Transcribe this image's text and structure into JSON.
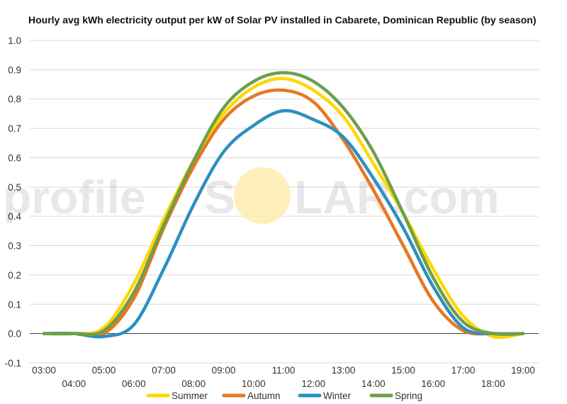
{
  "chart_data": {
    "type": "line",
    "title": "Hourly avg kWh electricity output per kW of Solar PV installed in Cabarete, Dominican Republic (by season)",
    "xlabel": "",
    "ylabel": "",
    "ylim": [
      -0.1,
      1.0
    ],
    "y_ticks": [
      "-0.1",
      "0.0",
      "0.1",
      "0.2",
      "0.3",
      "0.4",
      "0.5",
      "0.6",
      "0.7",
      "0.8",
      "0.9",
      "1.0"
    ],
    "x_ticks": [
      "03:00",
      "04:00",
      "05:00",
      "06:00",
      "07:00",
      "08:00",
      "09:00",
      "10:00",
      "11:00",
      "12:00",
      "13:00",
      "14:00",
      "15:00",
      "16:00",
      "17:00",
      "18:00",
      "19:00"
    ],
    "x": [
      3,
      4,
      5,
      6,
      7,
      8,
      9,
      10,
      11,
      12,
      13,
      14,
      15,
      16,
      17,
      18,
      19
    ],
    "grid": true,
    "legend_position": "bottom",
    "series": [
      {
        "name": "Summer",
        "color": "#FFD700",
        "values": [
          0.0,
          0.0,
          0.02,
          0.17,
          0.39,
          0.59,
          0.75,
          0.84,
          0.87,
          0.83,
          0.74,
          0.58,
          0.41,
          0.22,
          0.06,
          -0.01,
          0.0
        ]
      },
      {
        "name": "Autumn",
        "color": "#E87722",
        "values": [
          0.0,
          0.0,
          0.0,
          0.12,
          0.36,
          0.57,
          0.73,
          0.81,
          0.83,
          0.79,
          0.66,
          0.49,
          0.3,
          0.11,
          0.01,
          0.0,
          0.0
        ]
      },
      {
        "name": "Winter",
        "color": "#2D8FC1",
        "values": [
          0.0,
          0.0,
          -0.01,
          0.03,
          0.22,
          0.44,
          0.62,
          0.71,
          0.76,
          0.73,
          0.67,
          0.53,
          0.36,
          0.16,
          0.02,
          0.0,
          0.0
        ]
      },
      {
        "name": "Spring",
        "color": "#6E9F4A",
        "values": [
          0.0,
          0.0,
          0.01,
          0.14,
          0.37,
          0.59,
          0.77,
          0.86,
          0.89,
          0.86,
          0.77,
          0.62,
          0.41,
          0.19,
          0.04,
          0.0,
          0.0
        ]
      }
    ]
  },
  "watermark": {
    "text_left": "profile",
    "text_s": "S",
    "text_right": "LAR.com",
    "sun_color": "#FFE9A3"
  }
}
